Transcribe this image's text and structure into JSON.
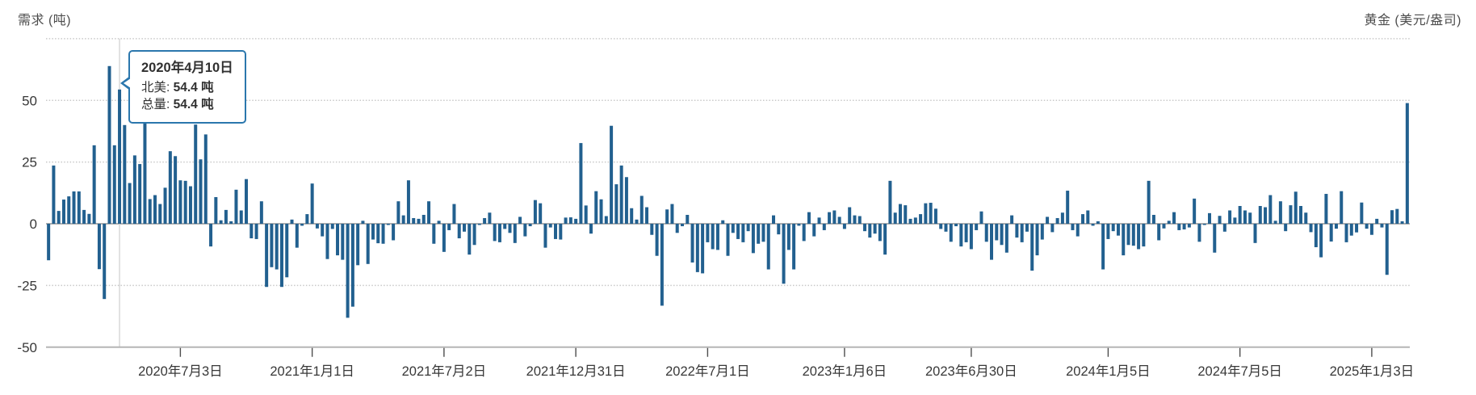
{
  "chart_data": {
    "type": "bar",
    "title": "",
    "ylabel_left": "需求 (吨)",
    "ylabel_right": "黄金 (美元/盎司)",
    "frequency": "weekly",
    "series_name": "总量",
    "ylim": [
      -50,
      75
    ],
    "grid_values": [
      75,
      50,
      25,
      -25
    ],
    "legend_position": "none",
    "grid": "dotted horizontal",
    "y_ticks": [
      {
        "value": 50,
        "label": "50"
      },
      {
        "value": 25,
        "label": "25"
      },
      {
        "value": 0,
        "label": "0"
      },
      {
        "value": -25,
        "label": "-25"
      },
      {
        "value": -50,
        "label": "-50"
      }
    ],
    "x_ticks": [
      {
        "index": 26,
        "label": "2020年7月3日"
      },
      {
        "index": 52,
        "label": "2021年1月1日"
      },
      {
        "index": 78,
        "label": "2021年7月2日"
      },
      {
        "index": 104,
        "label": "2021年12月31日"
      },
      {
        "index": 130,
        "label": "2022年7月1日"
      },
      {
        "index": 157,
        "label": "2023年1月6日"
      },
      {
        "index": 182,
        "label": "2023年6月30日"
      },
      {
        "index": 209,
        "label": "2024年1月5日"
      },
      {
        "index": 235,
        "label": "2024年7月5日"
      },
      {
        "index": 261,
        "label": "2025年1月3日"
      }
    ],
    "values": [
      -14.8,
      23.6,
      5.2,
      9.8,
      11.1,
      13.1,
      13.1,
      5.6,
      4.0,
      31.8,
      -18.4,
      -30.5,
      63.9,
      31.8,
      54.4,
      40.0,
      16.5,
      27.7,
      24.2,
      48.0,
      10.0,
      11.6,
      8.0,
      14.6,
      29.4,
      27.4,
      17.6,
      17.4,
      15.2,
      40.2,
      26.1,
      36.2,
      -9.2,
      10.8,
      1.4,
      5.6,
      1.0,
      13.8,
      5.4,
      18.1,
      -5.9,
      -6.2,
      9.1,
      -25.6,
      -17.6,
      -18.5,
      -25.6,
      -21.7,
      1.7,
      -9.7,
      -0.8,
      3.9,
      16.3,
      -1.9,
      -5.1,
      -14.3,
      -2.1,
      -12.8,
      -14.6,
      -38.1,
      -33.6,
      -16.8,
      1.2,
      -16.3,
      -6.4,
      -7.9,
      -8.1,
      -0.5,
      -6.7,
      9.1,
      3.4,
      17.6,
      2.3,
      2.0,
      3.6,
      9.1,
      -8.1,
      1.2,
      -11.4,
      -2.6,
      8.0,
      -5.9,
      -3.2,
      -12.5,
      -8.6,
      -0.5,
      2.3,
      4.5,
      -7.0,
      -7.5,
      -2.1,
      -3.7,
      -7.8,
      2.8,
      -5.1,
      -1.0,
      9.6,
      8.3,
      -9.7,
      -1.5,
      -6.2,
      -6.4,
      2.5,
      2.6,
      2.0,
      32.7,
      7.4,
      -4.0,
      13.2,
      9.9,
      3.1,
      39.7,
      16.0,
      23.6,
      18.9,
      6.3,
      1.7,
      11.3,
      6.7,
      -4.5,
      -13.0,
      -33.2,
      5.8,
      8.0,
      -3.7,
      -1.0,
      3.6,
      -15.7,
      -19.6,
      -20.1,
      -7.5,
      -10.3,
      -10.6,
      1.4,
      -13.0,
      -3.7,
      -6.2,
      -7.5,
      -3.0,
      -11.9,
      -8.1,
      -7.3,
      -18.5,
      3.4,
      -4.3,
      -24.3,
      -10.6,
      -18.5,
      -0.8,
      -7.0,
      4.7,
      -5.1,
      2.5,
      -2.6,
      4.7,
      5.4,
      2.8,
      -2.1,
      6.7,
      3.4,
      3.1,
      -3.0,
      -5.6,
      -4.0,
      -7.0,
      -12.5,
      17.4,
      4.5,
      8.0,
      7.5,
      2.0,
      2.5,
      3.9,
      8.3,
      8.5,
      6.1,
      -2.1,
      -3.2,
      -7.3,
      -1.0,
      -9.2,
      -7.5,
      -10.3,
      -2.6,
      5.0,
      -7.3,
      -14.6,
      -6.7,
      -8.6,
      -11.7,
      3.4,
      -5.6,
      -7.5,
      -3.2,
      -19.0,
      -12.8,
      -6.4,
      2.8,
      -3.4,
      2.3,
      4.5,
      13.4,
      -2.6,
      -5.1,
      3.9,
      5.4,
      -0.8,
      1.0,
      -18.5,
      -6.2,
      -3.0,
      -4.8,
      -12.8,
      -8.6,
      -8.9,
      -10.3,
      -9.2,
      17.4,
      3.6,
      -6.7,
      -1.9,
      1.2,
      4.7,
      -2.6,
      -2.3,
      -1.5,
      10.2,
      -7.3,
      -0.5,
      4.3,
      -11.7,
      3.2,
      -3.2,
      5.4,
      2.5,
      7.2,
      5.4,
      4.5,
      -7.8,
      7.2,
      6.7,
      11.6,
      1.2,
      9.1,
      -3.0,
      7.5,
      13.0,
      7.2,
      4.5,
      -3.4,
      -9.5,
      -13.6,
      12.1,
      -7.2,
      -2.0,
      13.2,
      -7.5,
      -4.8,
      -3.5,
      8.6,
      -2.0,
      -4.5,
      2.0,
      -1.5,
      -20.7,
      5.5,
      6.0,
      1.0,
      48.9
    ],
    "hover_index": 14,
    "tooltip": {
      "title": "2020年4月10日",
      "rows": [
        {
          "label": "北美:",
          "value": "54.4 吨"
        },
        {
          "label": "总量:",
          "value": "54.4 吨"
        }
      ]
    },
    "colors": {
      "bar": "#22608f",
      "tooltip_border": "#2b77ad",
      "gridline": "#c9c9c9",
      "zero_line": "#b0b0b0",
      "axis_line": "#b5b5b5",
      "tick_mark": "#4d4d4d",
      "tick_label": "#383838",
      "axis_title": "#4d4d4d",
      "crosshair": "#d2d2d2"
    }
  }
}
